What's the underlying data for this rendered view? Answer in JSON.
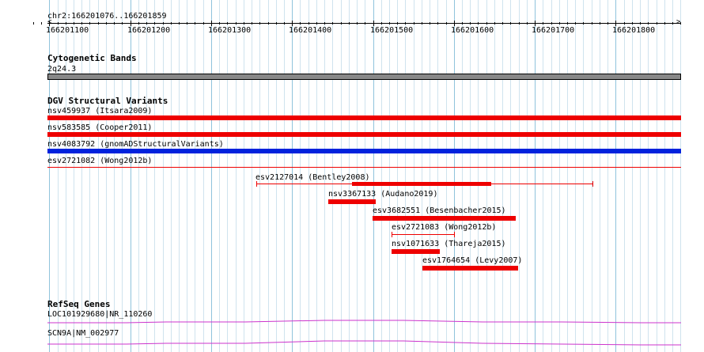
{
  "ruler": {
    "locus": "chr2:166201076..166201859",
    "ticks": [
      "166201100",
      "166201200",
      "166201300",
      "166201400",
      "166201500",
      "166201600",
      "166201700",
      "166201800"
    ]
  },
  "cytoband": {
    "track_title": "Cytogenetic Bands",
    "band": "2q24.3",
    "color": "#888888"
  },
  "dgv": {
    "track_title": "DGV Structural Variants",
    "full_rows": [
      {
        "label": "nsv459937 (Itsara2009)",
        "color": "#ee0000"
      },
      {
        "label": "nsv583585 (Cooper2011)",
        "color": "#ee0000"
      },
      {
        "label": "nsv4083792 (gnomADStructuralVariants)",
        "color": "#0022dd"
      },
      {
        "label": "esv2721082 (Wong2012b)",
        "color": "#ee0000"
      }
    ],
    "features": [
      {
        "label": "esv2127014 (Bentley2008)",
        "color": "#ee0000"
      },
      {
        "label": "nsv3367133 (Audano2019)",
        "color": "#ee0000"
      },
      {
        "label": "esv3682551 (Besenbacher2015)",
        "color": "#ee0000"
      },
      {
        "label": "esv2721083 (Wong2012b)",
        "color": "#ee0000"
      },
      {
        "label": "nsv1071633 (Thareja2015)",
        "color": "#ee0000"
      },
      {
        "label": "esv1764654 (Levy2007)",
        "color": "#ee0000"
      }
    ]
  },
  "refseq": {
    "track_title": "RefSeq Genes",
    "genes": [
      {
        "label": "LOC101929680|NR_110260",
        "color": "#cc33cc"
      },
      {
        "label": "SCN9A|NM_002977",
        "color": "#cc33cc"
      }
    ]
  }
}
